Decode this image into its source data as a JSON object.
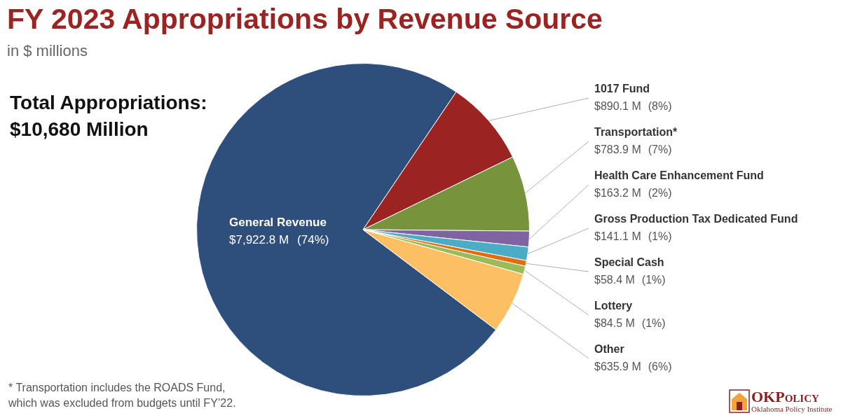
{
  "chart_data": {
    "type": "pie",
    "title": "FY 2023 Appropriations by Revenue Source",
    "subtitle": "in $ millions",
    "annotations": [
      "Total Appropriations:",
      "$10,680 Million"
    ],
    "footnote": [
      "* Transportation includes the ROADS Fund,",
      "which was excluded from budgets until FY’22."
    ],
    "source": {
      "name": "OKPolicy",
      "tagline": "Oklahoma Policy Institute"
    },
    "categories": [
      "General Revenue",
      "1017 Fund",
      "Transportation*",
      "Health Care Enhancement Fund",
      "Gross Production Tax Dedicated Fund",
      "Special Cash",
      "Lottery",
      "Other"
    ],
    "values": [
      7922.8,
      890.1,
      783.9,
      163.2,
      141.1,
      58.4,
      84.5,
      635.9
    ],
    "value_labels": [
      "$7,922.8 M",
      "$890.1 M",
      "$783.9 M",
      "$163.2 M",
      "$141.1 M",
      "$58.4 M",
      "$84.5 M",
      "$635.9 M"
    ],
    "percentages": [
      74,
      8,
      7,
      2,
      1,
      1,
      1,
      6
    ],
    "percentage_labels": [
      "(74%)",
      "(8%)",
      "(7%)",
      "(2%)",
      "(1%)",
      "(1%)",
      "(1%)",
      "(6%)"
    ],
    "colors": [
      "#2e4f7c",
      "#9b2423",
      "#77933c",
      "#8064a2",
      "#4bacc6",
      "#e46c0a",
      "#9bbb59",
      "#fdbf63"
    ],
    "data_labels": true
  }
}
